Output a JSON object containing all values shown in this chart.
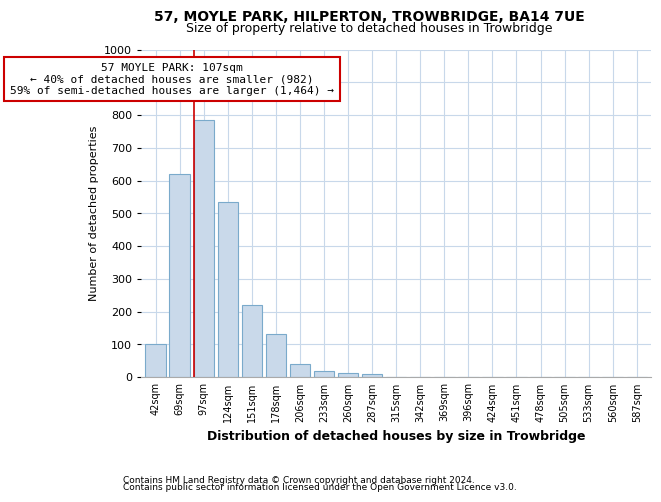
{
  "title_line1": "57, MOYLE PARK, HILPERTON, TROWBRIDGE, BA14 7UE",
  "title_line2": "Size of property relative to detached houses in Trowbridge",
  "xlabel": "Distribution of detached houses by size in Trowbridge",
  "ylabel": "Number of detached properties",
  "bar_labels": [
    "42sqm",
    "69sqm",
    "97sqm",
    "124sqm",
    "151sqm",
    "178sqm",
    "206sqm",
    "233sqm",
    "260sqm",
    "287sqm",
    "315sqm",
    "342sqm",
    "369sqm",
    "396sqm",
    "424sqm",
    "451sqm",
    "478sqm",
    "505sqm",
    "533sqm",
    "560sqm",
    "587sqm"
  ],
  "bar_values": [
    100,
    620,
    785,
    535,
    220,
    130,
    40,
    18,
    12,
    10,
    0,
    0,
    0,
    0,
    0,
    0,
    0,
    0,
    0,
    0,
    0
  ],
  "bar_color": "#c9d9ea",
  "bar_edge_color": "#7aaacb",
  "vline_x": 2.0,
  "vline_color": "#cc0000",
  "annotation_text": "57 MOYLE PARK: 107sqm\n← 40% of detached houses are smaller (982)\n59% of semi-detached houses are larger (1,464) →",
  "annotation_box_color": "#cc0000",
  "ylim": [
    0,
    1000
  ],
  "yticks": [
    0,
    100,
    200,
    300,
    400,
    500,
    600,
    700,
    800,
    900,
    1000
  ],
  "footer_line1": "Contains HM Land Registry data © Crown copyright and database right 2024.",
  "footer_line2": "Contains public sector information licensed under the Open Government Licence v3.0.",
  "bg_color": "#ffffff",
  "grid_color": "#c8d8ea"
}
